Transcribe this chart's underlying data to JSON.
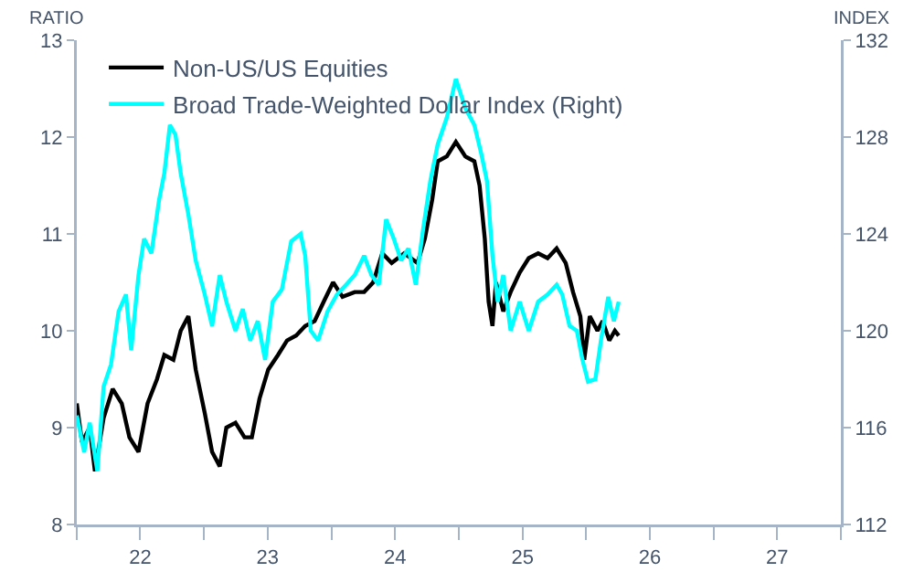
{
  "chart_data": {
    "type": "line",
    "ylabel": "RATIO",
    "y2label": "INDEX",
    "legend": "top left",
    "grid": false,
    "xlim": [
      "2022-01-01",
      "2028-01-01"
    ],
    "xticks": [
      {
        "value": "2022-01-01",
        "label": null
      },
      {
        "value": "2022-07-02",
        "label": "22"
      },
      {
        "value": "2023-01-01",
        "label": null
      },
      {
        "value": "2023-07-02",
        "label": "23"
      },
      {
        "value": "2024-01-01",
        "label": null
      },
      {
        "value": "2024-07-02",
        "label": "24"
      },
      {
        "value": "2025-01-01",
        "label": null
      },
      {
        "value": "2025-07-02",
        "label": "25"
      },
      {
        "value": "2026-01-01",
        "label": null
      },
      {
        "value": "2026-07-02",
        "label": "26"
      },
      {
        "value": "2027-01-01",
        "label": null
      },
      {
        "value": "2027-07-02",
        "label": "27"
      },
      {
        "value": "2028-01-01",
        "label": null
      }
    ],
    "ylim": [
      8,
      13
    ],
    "yticks": [
      8,
      9,
      10,
      11,
      12,
      13
    ],
    "y2lim": [
      112,
      132
    ],
    "y2ticks": [
      112,
      116,
      120,
      124,
      128,
      132
    ],
    "series": [
      {
        "name": "Non-US/US Equities",
        "color": "#000000",
        "x": [
          "2022-01-01",
          "2022-01-16",
          "2022-02-07",
          "2022-02-22",
          "2022-03-19",
          "2022-04-14",
          "2022-05-10",
          "2022-06-01",
          "2022-06-27",
          "2022-07-23",
          "2022-08-19",
          "2022-09-09",
          "2022-10-05",
          "2022-10-26",
          "2022-11-17",
          "2022-12-08",
          "2023-01-03",
          "2023-01-24",
          "2023-02-15",
          "2023-03-06",
          "2023-04-01",
          "2023-04-27",
          "2023-05-18",
          "2023-06-09",
          "2023-07-04",
          "2023-08-01",
          "2023-08-27",
          "2023-09-22",
          "2023-10-18",
          "2023-11-14",
          "2023-12-10",
          "2024-01-06",
          "2024-02-02",
          "2024-03-08",
          "2024-04-04",
          "2024-04-30",
          "2024-05-26",
          "2024-06-22",
          "2024-07-28",
          "2024-09-04",
          "2024-09-25",
          "2024-10-16",
          "2024-11-01",
          "2024-11-27",
          "2024-12-23",
          "2025-01-19",
          "2025-02-14",
          "2025-03-01",
          "2025-03-16",
          "2025-03-27",
          "2025-04-07",
          "2025-04-17",
          "2025-05-08",
          "2025-05-29",
          "2025-06-24",
          "2025-07-20",
          "2025-08-16",
          "2025-09-12",
          "2025-10-08",
          "2025-11-03",
          "2025-11-24",
          "2025-12-15",
          "2025-12-26",
          "2026-01-11",
          "2026-02-02",
          "2026-02-17",
          "2026-03-08",
          "2026-03-24",
          "2026-04-04"
        ],
        "values": [
          9.25,
          8.85,
          9.0,
          8.55,
          9.1,
          9.4,
          9.25,
          8.9,
          8.75,
          9.25,
          9.5,
          9.75,
          9.7,
          10.0,
          10.15,
          9.6,
          9.15,
          8.75,
          8.6,
          9.0,
          9.05,
          8.9,
          8.9,
          9.3,
          9.6,
          9.75,
          9.9,
          9.95,
          10.05,
          10.1,
          10.3,
          10.5,
          10.35,
          10.4,
          10.4,
          10.5,
          10.8,
          10.7,
          10.8,
          10.7,
          10.95,
          11.35,
          11.75,
          11.8,
          11.95,
          11.8,
          11.75,
          11.5,
          10.95,
          10.3,
          10.05,
          10.5,
          10.2,
          10.4,
          10.6,
          10.75,
          10.8,
          10.75,
          10.85,
          10.7,
          10.4,
          10.15,
          9.7,
          10.15,
          10.0,
          10.1,
          9.9,
          10.0,
          9.95
        ]
      },
      {
        "name": "Broad Trade-Weighted Dollar Index (Right)",
        "color": "#00ffff",
        "axis": "y2",
        "x": [
          "2022-01-01",
          "2022-01-22",
          "2022-02-07",
          "2022-03-01",
          "2022-03-19",
          "2022-04-09",
          "2022-05-01",
          "2022-05-22",
          "2022-06-06",
          "2022-06-27",
          "2022-07-13",
          "2022-08-03",
          "2022-08-25",
          "2022-09-09",
          "2022-09-25",
          "2022-10-11",
          "2022-10-26",
          "2022-11-17",
          "2022-12-08",
          "2023-01-03",
          "2023-01-24",
          "2023-02-15",
          "2023-03-06",
          "2023-04-01",
          "2023-04-22",
          "2023-05-13",
          "2023-06-04",
          "2023-06-25",
          "2023-07-17",
          "2023-08-12",
          "2023-09-08",
          "2023-10-05",
          "2023-10-18",
          "2023-11-03",
          "2023-11-24",
          "2023-12-21",
          "2024-01-17",
          "2024-02-12",
          "2024-03-08",
          "2024-04-04",
          "2024-04-25",
          "2024-05-16",
          "2024-06-06",
          "2024-06-28",
          "2024-07-19",
          "2024-08-09",
          "2024-08-30",
          "2024-09-20",
          "2024-10-11",
          "2024-11-01",
          "2024-11-27",
          "2024-12-23",
          "2025-01-19",
          "2025-02-14",
          "2025-03-06",
          "2025-03-22",
          "2025-04-07",
          "2025-04-22",
          "2025-05-08",
          "2025-05-29",
          "2025-06-24",
          "2025-07-20",
          "2025-08-16",
          "2025-09-12",
          "2025-10-08",
          "2025-10-24",
          "2025-11-14",
          "2025-12-05",
          "2025-12-21",
          "2026-01-06",
          "2026-01-27",
          "2026-02-12",
          "2026-03-05",
          "2026-03-21",
          "2026-04-04"
        ],
        "values": [
          116.5,
          115.0,
          116.2,
          114.2,
          117.7,
          118.6,
          120.8,
          121.5,
          119.2,
          122.3,
          123.8,
          123.2,
          125.4,
          126.5,
          128.5,
          128.1,
          126.5,
          124.8,
          122.9,
          121.5,
          120.2,
          122.3,
          121.2,
          120.0,
          120.9,
          119.6,
          120.4,
          118.8,
          121.2,
          121.7,
          123.7,
          124.0,
          123.1,
          120.0,
          119.6,
          120.8,
          121.5,
          121.9,
          122.3,
          123.1,
          122.3,
          121.9,
          124.6,
          123.8,
          122.9,
          123.4,
          121.9,
          124.2,
          126.2,
          127.7,
          128.8,
          130.4,
          129.2,
          128.5,
          127.3,
          126.2,
          123.1,
          121.2,
          122.3,
          120.0,
          121.2,
          120.0,
          121.2,
          121.5,
          121.9,
          121.5,
          120.2,
          120.0,
          118.8,
          117.9,
          118.0,
          119.6,
          121.4,
          120.4,
          121.2
        ]
      }
    ]
  }
}
